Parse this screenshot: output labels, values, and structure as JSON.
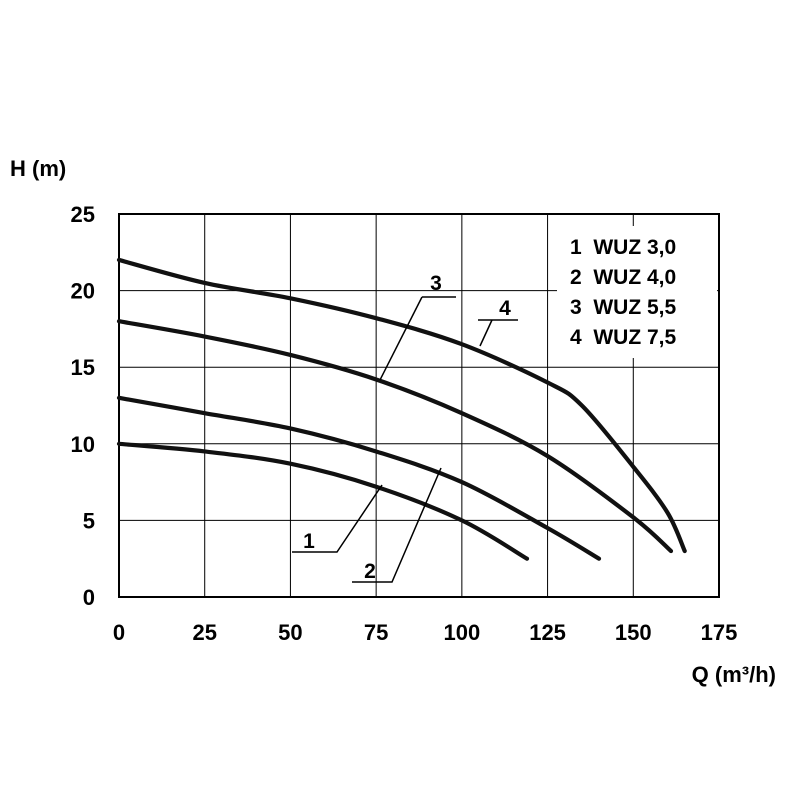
{
  "chart_data": {
    "type": "line",
    "xlabel": "Q (m³/h)",
    "ylabel": "H (m)",
    "xlim": [
      0,
      175
    ],
    "ylim": [
      0,
      25
    ],
    "xticks": [
      0,
      25,
      50,
      75,
      100,
      125,
      150,
      175
    ],
    "yticks": [
      0,
      5,
      10,
      15,
      20,
      25
    ],
    "grid": true,
    "legend_position": "top-right",
    "legend": [
      "1  WUZ 3,0",
      "2  WUZ 4,0",
      "3  WUZ 5,5",
      "4  WUZ 7,5"
    ],
    "series": [
      {
        "name": "WUZ 3,0",
        "label": "1",
        "x": [
          0,
          25,
          50,
          75,
          100,
          119
        ],
        "y": [
          10,
          9.5,
          8.7,
          7.2,
          5.0,
          2.5
        ]
      },
      {
        "name": "WUZ 4,0",
        "label": "2",
        "x": [
          0,
          25,
          50,
          75,
          100,
          125,
          140
        ],
        "y": [
          13,
          12,
          11,
          9.5,
          7.5,
          4.5,
          2.5
        ]
      },
      {
        "name": "WUZ 5,5",
        "label": "3",
        "x": [
          0,
          25,
          50,
          75,
          100,
          125,
          150,
          161
        ],
        "y": [
          18,
          17,
          15.8,
          14.2,
          12,
          9.2,
          5.2,
          3.0
        ]
      },
      {
        "name": "WUZ 7,5",
        "label": "4",
        "x": [
          0,
          25,
          50,
          75,
          100,
          125,
          135,
          150,
          160,
          165
        ],
        "y": [
          22,
          20.5,
          19.5,
          18.2,
          16.5,
          14.0,
          12.5,
          8.5,
          5.5,
          3.0
        ]
      }
    ]
  }
}
